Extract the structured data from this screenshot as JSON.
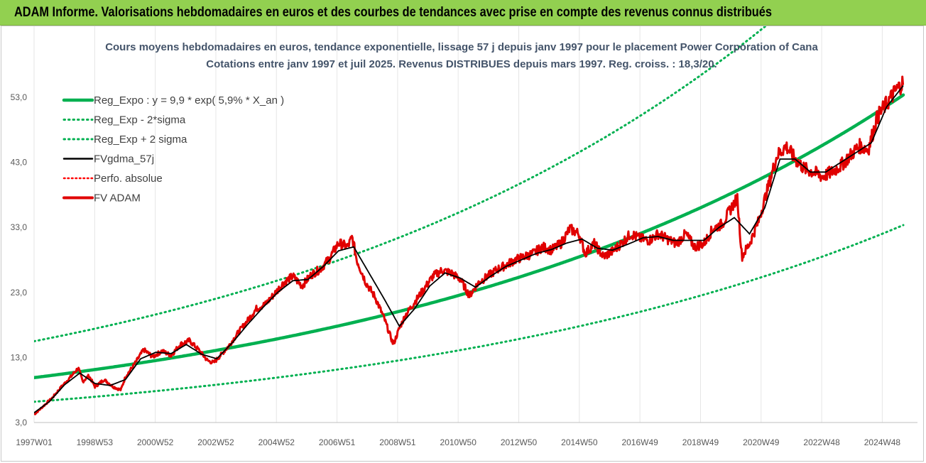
{
  "header": {
    "title": "ADAM Informe. Valorisations hebdomadaires en euros et des courbes de tendances avec prise en compte des revenus connus distribués"
  },
  "colors": {
    "banner": "#92d050",
    "trend": "#00b050",
    "band": "#00b050",
    "gdma": "#000000",
    "perf": "#ff0000",
    "fvadam": "#e00000"
  },
  "chart_data": {
    "type": "line",
    "title": "Cours moyens hebdomadaires en euros, tendance exponentielle, lissage 57 j depuis janv 1997 pour le placement Power Corporation of Cana",
    "subtitle": "Cotations entre janv 1997 et juil 2025. Revenus DISTRIBUES depuis mars 1997. Reg. croiss. : 18,3/20.",
    "xlabel": "",
    "ylabel": "",
    "x_range": [
      1997.0,
      2025.55
    ],
    "ylim": [
      3.0,
      59.0
    ],
    "y_ticks": [
      "3,0",
      "13,0",
      "23,0",
      "33,0",
      "43,0",
      "53,0"
    ],
    "x_ticks": [
      "1997W01",
      "1998W53",
      "2000W52",
      "2002W52",
      "2004W52",
      "2006W51",
      "2008W51",
      "2010W50",
      "2012W50",
      "2014W50",
      "2016W49",
      "2018W49",
      "2020W49",
      "2022W48",
      "2024W48"
    ],
    "grid": "vertical",
    "legend_position": "top-left",
    "trend_formula": {
      "a": 9.9,
      "rate": 0.059
    },
    "legend": [
      {
        "label": "Reg_Expo : y = 9,9 * exp( 5,9% *  X_an )",
        "style": "solid-green"
      },
      {
        "label": "Reg_Exp - 2*sigma",
        "style": "dotted-green"
      },
      {
        "label": "Reg_Exp + 2 sigma",
        "style": "dotted-green"
      },
      {
        "label": "FVgdma_57j",
        "style": "solid-black"
      },
      {
        "label": "Perfo. absolue",
        "style": "dotted-red"
      },
      {
        "label": "FV ADAM",
        "style": "solid-red"
      }
    ],
    "series": [
      {
        "name": "Reg_Expo : y = 9,9 * exp( 5,9% *  X_an )",
        "kind": "exp",
        "factor": 1.0
      },
      {
        "name": "Reg_Exp - 2*sigma",
        "kind": "exp",
        "factor": 0.625
      },
      {
        "name": "Reg_Exp + 2 sigma",
        "kind": "exp",
        "factor": 1.565
      },
      {
        "name": "FV ADAM",
        "x": [
          1997.0,
          1997.3,
          1997.6,
          1997.9,
          1998.2,
          1998.45,
          1998.6,
          1998.8,
          1999.0,
          1999.3,
          1999.6,
          1999.85,
          2000.0,
          2000.3,
          2000.6,
          2000.9,
          2001.2,
          2001.5,
          2001.8,
          2002.1,
          2002.4,
          2002.7,
          2002.9,
          2003.1,
          2003.4,
          2003.7,
          2004.0,
          2004.3,
          2004.6,
          2004.9,
          2005.2,
          2005.5,
          2005.8,
          2006.1,
          2006.4,
          2006.7,
          2007.0,
          2007.3,
          2007.45,
          2007.6,
          2007.9,
          2008.2,
          2008.5,
          2008.8,
          2009.0,
          2009.2,
          2009.5,
          2009.8,
          2010.1,
          2010.4,
          2010.7,
          2011.0,
          2011.3,
          2011.6,
          2011.9,
          2012.2,
          2012.5,
          2012.8,
          2013.1,
          2013.4,
          2013.7,
          2014.0,
          2014.3,
          2014.6,
          2014.9,
          2015.1,
          2015.4,
          2015.7,
          2016.0,
          2016.3,
          2016.6,
          2016.9,
          2017.2,
          2017.5,
          2017.8,
          2018.1,
          2018.4,
          2018.7,
          2019.0,
          2019.3,
          2019.6,
          2019.9,
          2020.1,
          2020.25,
          2020.5,
          2020.8,
          2021.1,
          2021.4,
          2021.7,
          2022.0,
          2022.3,
          2022.6,
          2022.9,
          2023.2,
          2023.5,
          2023.8,
          2024.1,
          2024.4,
          2024.7,
          2025.0,
          2025.3,
          2025.55
        ],
        "values": [
          4.2,
          5.5,
          6.8,
          8.5,
          10.0,
          11.4,
          9.3,
          10.2,
          8.5,
          9.6,
          8.5,
          8.0,
          10.0,
          12.0,
          14.2,
          13.1,
          14.0,
          13.3,
          15.0,
          15.6,
          14.2,
          12.5,
          12.2,
          13.2,
          14.8,
          16.8,
          18.6,
          20.5,
          21.2,
          22.8,
          24.5,
          25.5,
          24.0,
          25.7,
          26.6,
          28.2,
          30.6,
          30.0,
          31.5,
          28.0,
          24.5,
          22.3,
          19.0,
          15.0,
          17.5,
          19.5,
          21.5,
          23.5,
          25.5,
          26.4,
          26.0,
          25.0,
          22.5,
          24.5,
          25.5,
          26.5,
          27.2,
          28.0,
          28.5,
          29.0,
          30.0,
          29.5,
          30.5,
          32.8,
          32.0,
          29.0,
          30.5,
          28.5,
          29.3,
          30.6,
          32.0,
          31.3,
          31.0,
          32.0,
          31.2,
          30.5,
          32.0,
          30.0,
          30.5,
          32.8,
          33.5,
          36.0,
          37.5,
          28.5,
          30.5,
          34.0,
          39.0,
          44.0,
          45.5,
          43.5,
          42.0,
          41.5,
          40.8,
          41.5,
          42.5,
          44.0,
          45.5,
          45.0,
          50.0,
          52.0,
          54.0,
          55.3
        ]
      },
      {
        "name": "FVgdma_57j",
        "x": [
          1997.0,
          1997.5,
          1998.0,
          1998.5,
          1999.0,
          1999.5,
          2000.0,
          2000.5,
          2001.0,
          2001.5,
          2002.0,
          2002.5,
          2003.0,
          2003.5,
          2004.0,
          2004.5,
          2005.0,
          2005.5,
          2006.0,
          2006.5,
          2007.0,
          2007.5,
          2008.0,
          2008.5,
          2009.0,
          2009.5,
          2010.0,
          2010.5,
          2011.0,
          2011.5,
          2012.0,
          2012.5,
          2013.0,
          2013.5,
          2014.0,
          2014.5,
          2015.0,
          2015.5,
          2016.0,
          2016.5,
          2017.0,
          2017.5,
          2018.0,
          2018.5,
          2019.0,
          2019.5,
          2020.0,
          2020.5,
          2021.0,
          2021.5,
          2022.0,
          2022.5,
          2023.0,
          2023.5,
          2024.0,
          2024.5,
          2025.0,
          2025.55
        ],
        "values": [
          4.5,
          6.2,
          8.8,
          10.6,
          9.0,
          8.7,
          9.6,
          12.8,
          13.8,
          13.6,
          15.0,
          13.5,
          12.8,
          15.2,
          18.0,
          20.6,
          23.0,
          24.8,
          25.0,
          27.0,
          29.4,
          30.0,
          26.0,
          22.0,
          17.8,
          20.5,
          24.0,
          26.0,
          25.2,
          23.8,
          25.5,
          27.0,
          28.0,
          29.0,
          29.6,
          30.6,
          31.2,
          29.8,
          29.5,
          30.4,
          31.4,
          31.6,
          31.0,
          31.0,
          31.0,
          33.0,
          34.5,
          32.0,
          36.0,
          43.5,
          43.5,
          41.5,
          41.5,
          43.0,
          44.5,
          46.0,
          51.5,
          54.8
        ]
      }
    ]
  }
}
